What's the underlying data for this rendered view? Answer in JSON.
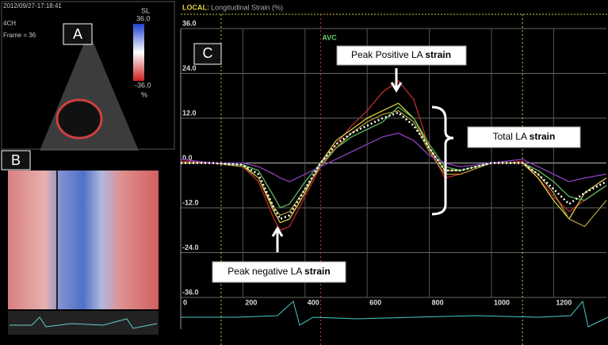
{
  "echo": {
    "timestamp": "2012/09/27-17:18:41",
    "view": "4CH",
    "frame": "Frame = 36",
    "scale_label": "SL",
    "scale_max": "36.0",
    "scale_min": "-36.0",
    "unit": "%"
  },
  "panels": [
    "A",
    "B",
    "C"
  ],
  "chart_data": {
    "type": "line",
    "label": "LOCAL:",
    "title": "Longitudinal Strain (%)",
    "x": [
      0,
      100,
      200,
      250,
      300,
      320,
      350,
      400,
      450,
      500,
      550,
      600,
      650,
      700,
      750,
      800,
      850,
      900,
      1000,
      1050,
      1100,
      1150,
      1200,
      1250,
      1300,
      1370
    ],
    "series": [
      {
        "color": "#c0282e",
        "values": [
          0.5,
          0,
          -1,
          -5,
          -15,
          -18,
          -17,
          -9,
          -1,
          5,
          10,
          14,
          19,
          22,
          17,
          4,
          -4,
          -3,
          0,
          0,
          0.5,
          -4,
          -9,
          -13,
          -10,
          -6
        ]
      },
      {
        "color": "#d8d040",
        "values": [
          0,
          0,
          -0.5,
          -4,
          -13,
          -16,
          -15,
          -8,
          0,
          6,
          9,
          12,
          14,
          16,
          12,
          4,
          -2,
          -2,
          0,
          0,
          0,
          -4,
          -10,
          -15,
          -8,
          -4
        ]
      },
      {
        "color": "#5cb85c",
        "values": [
          0,
          0,
          -0.5,
          -2,
          -9,
          -12,
          -11,
          -5,
          0,
          4,
          7,
          9,
          11,
          15,
          12,
          5,
          -1,
          -2,
          0,
          0,
          0,
          -2,
          -5,
          -9,
          -10,
          -6
        ]
      },
      {
        "color": "#a89838",
        "values": [
          0,
          0,
          -1,
          -4,
          -12,
          -14,
          -13,
          -7,
          -1,
          4,
          8,
          11,
          13,
          14,
          11,
          3,
          -3,
          -3,
          0,
          0,
          0,
          -3,
          -8,
          -15,
          -17,
          -10
        ]
      },
      {
        "color": "#9040c0",
        "values": [
          1,
          0,
          0,
          -1,
          -3,
          -4,
          -5,
          -3,
          -1,
          1,
          3,
          5,
          7,
          8,
          6,
          2,
          0,
          -1,
          0,
          0.5,
          1,
          -1,
          -3,
          -5,
          -4,
          -3
        ]
      },
      {
        "color": "#ffffff",
        "dashed": true,
        "values": [
          0,
          0,
          -0.5,
          -3,
          -12,
          -15,
          -14,
          -7,
          0,
          5,
          8,
          10,
          12,
          13.5,
          10,
          4,
          -2,
          -2,
          0,
          0,
          0,
          -3,
          -7,
          -11,
          -8,
          -5
        ]
      }
    ],
    "xlim": [
      0,
      1370
    ],
    "ylim": [
      -36,
      36
    ],
    "xticks": [
      0,
      200,
      400,
      600,
      800,
      1000,
      1200
    ],
    "yticks": [
      {
        "value": 36,
        "label": "36.0"
      },
      {
        "value": 24,
        "label": "24.0"
      },
      {
        "value": 12,
        "label": "12.0"
      },
      {
        "value": 0,
        "label": "0.0"
      },
      {
        "value": -12,
        "label": "-12.0"
      },
      {
        "value": -24,
        "label": "-24.0"
      },
      {
        "value": -36,
        "label": "-36.0"
      }
    ],
    "grid": true,
    "events": [
      130,
      450,
      1100
    ],
    "event_label": "AVC",
    "annotations": [
      {
        "text": "Peak Positive LA",
        "bold": "strain"
      },
      {
        "text": "Total LA",
        "bold": "strain"
      },
      {
        "text": "Peak negative LA",
        "bold": "strain"
      }
    ]
  }
}
